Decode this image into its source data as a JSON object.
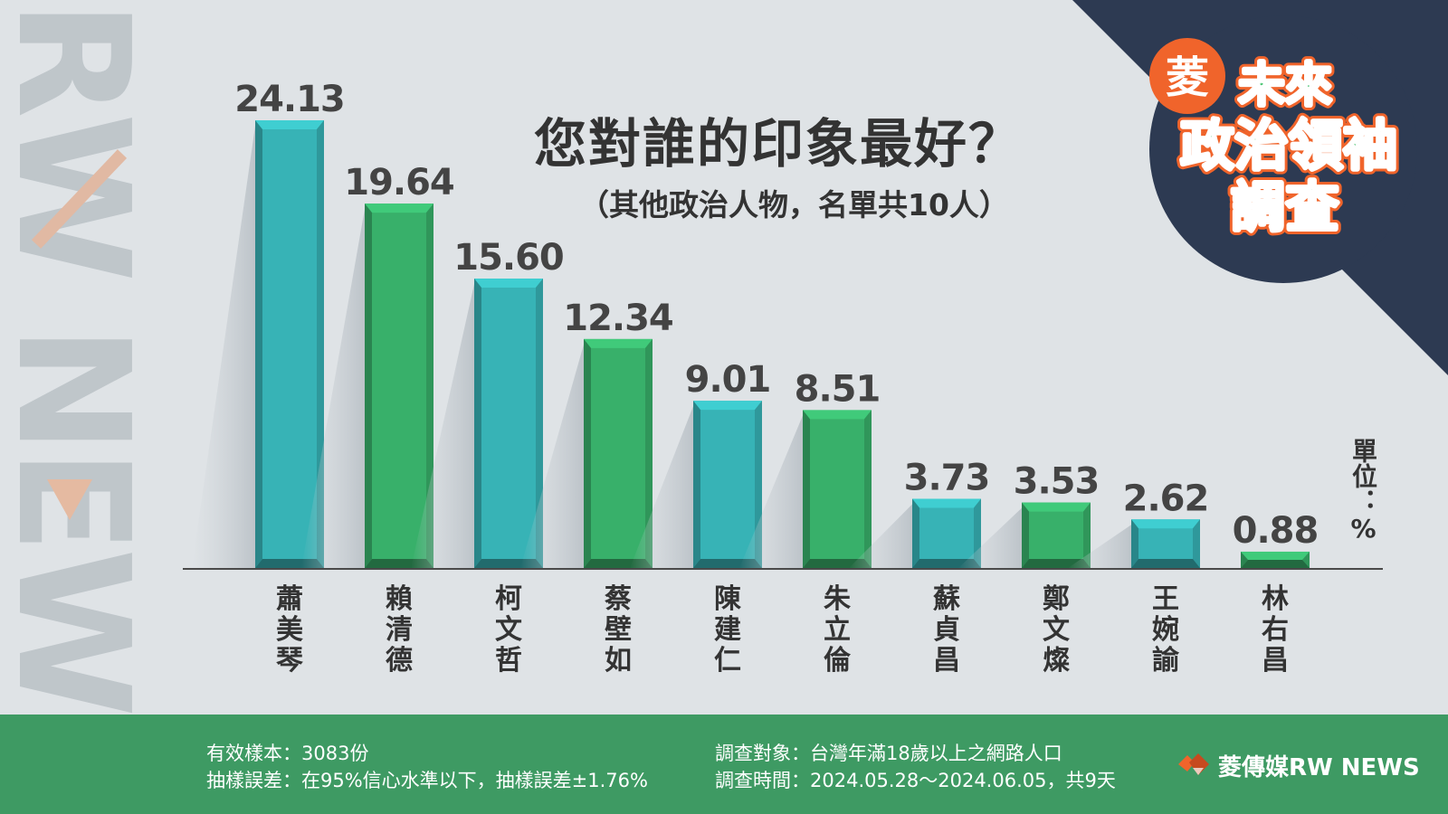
{
  "header": {
    "title": "您對誰的印象最好？",
    "subtitle": "（其他政治人物，名單共10人）",
    "unit": "單位：%"
  },
  "badge": {
    "char": "菱",
    "lines": [
      "未來",
      "政治領袖",
      "調查"
    ]
  },
  "watermark": "RW NEWS",
  "chart_data": {
    "type": "bar",
    "categories": [
      "蕭美琴",
      "賴清德",
      "柯文哲",
      "蔡壁如",
      "陳建仁",
      "朱立倫",
      "蘇貞昌",
      "鄭文燦",
      "王婉諭",
      "林右昌"
    ],
    "values": [
      24.13,
      19.64,
      15.6,
      12.34,
      9.01,
      8.51,
      3.73,
      3.53,
      2.62,
      0.88
    ],
    "value_labels": [
      "24.13",
      "19.64",
      "15.60",
      "12.34",
      "9.01",
      "8.51",
      "3.73",
      "3.53",
      "2.62",
      "0.88"
    ],
    "bar_colors": [
      "#37b3b6",
      "#38b06a",
      "#37b3b6",
      "#38b06a",
      "#37b3b6",
      "#38b06a",
      "#37b3b6",
      "#38b06a",
      "#37b3b6",
      "#38b06a"
    ],
    "ylim": [
      0,
      24.13
    ],
    "grid": false,
    "unit": "%"
  },
  "footer": {
    "sample": "有效樣本：3083份",
    "error": "抽樣誤差：在95%信心水準以下，抽樣誤差±1.76%",
    "target": "調查對象：台灣年滿18歲以上之網路人口",
    "period": "調查時間：2024.05.28～2024.06.05，共9天",
    "logo": "菱傳媒RW NEWS"
  },
  "colors": {
    "background": "#dfe3e6",
    "teal": "#37b3b6",
    "green": "#38b06a",
    "footer": "#3e9a63",
    "navy": "#2d3a52",
    "orange": "#f0642b",
    "text": "#333333"
  }
}
